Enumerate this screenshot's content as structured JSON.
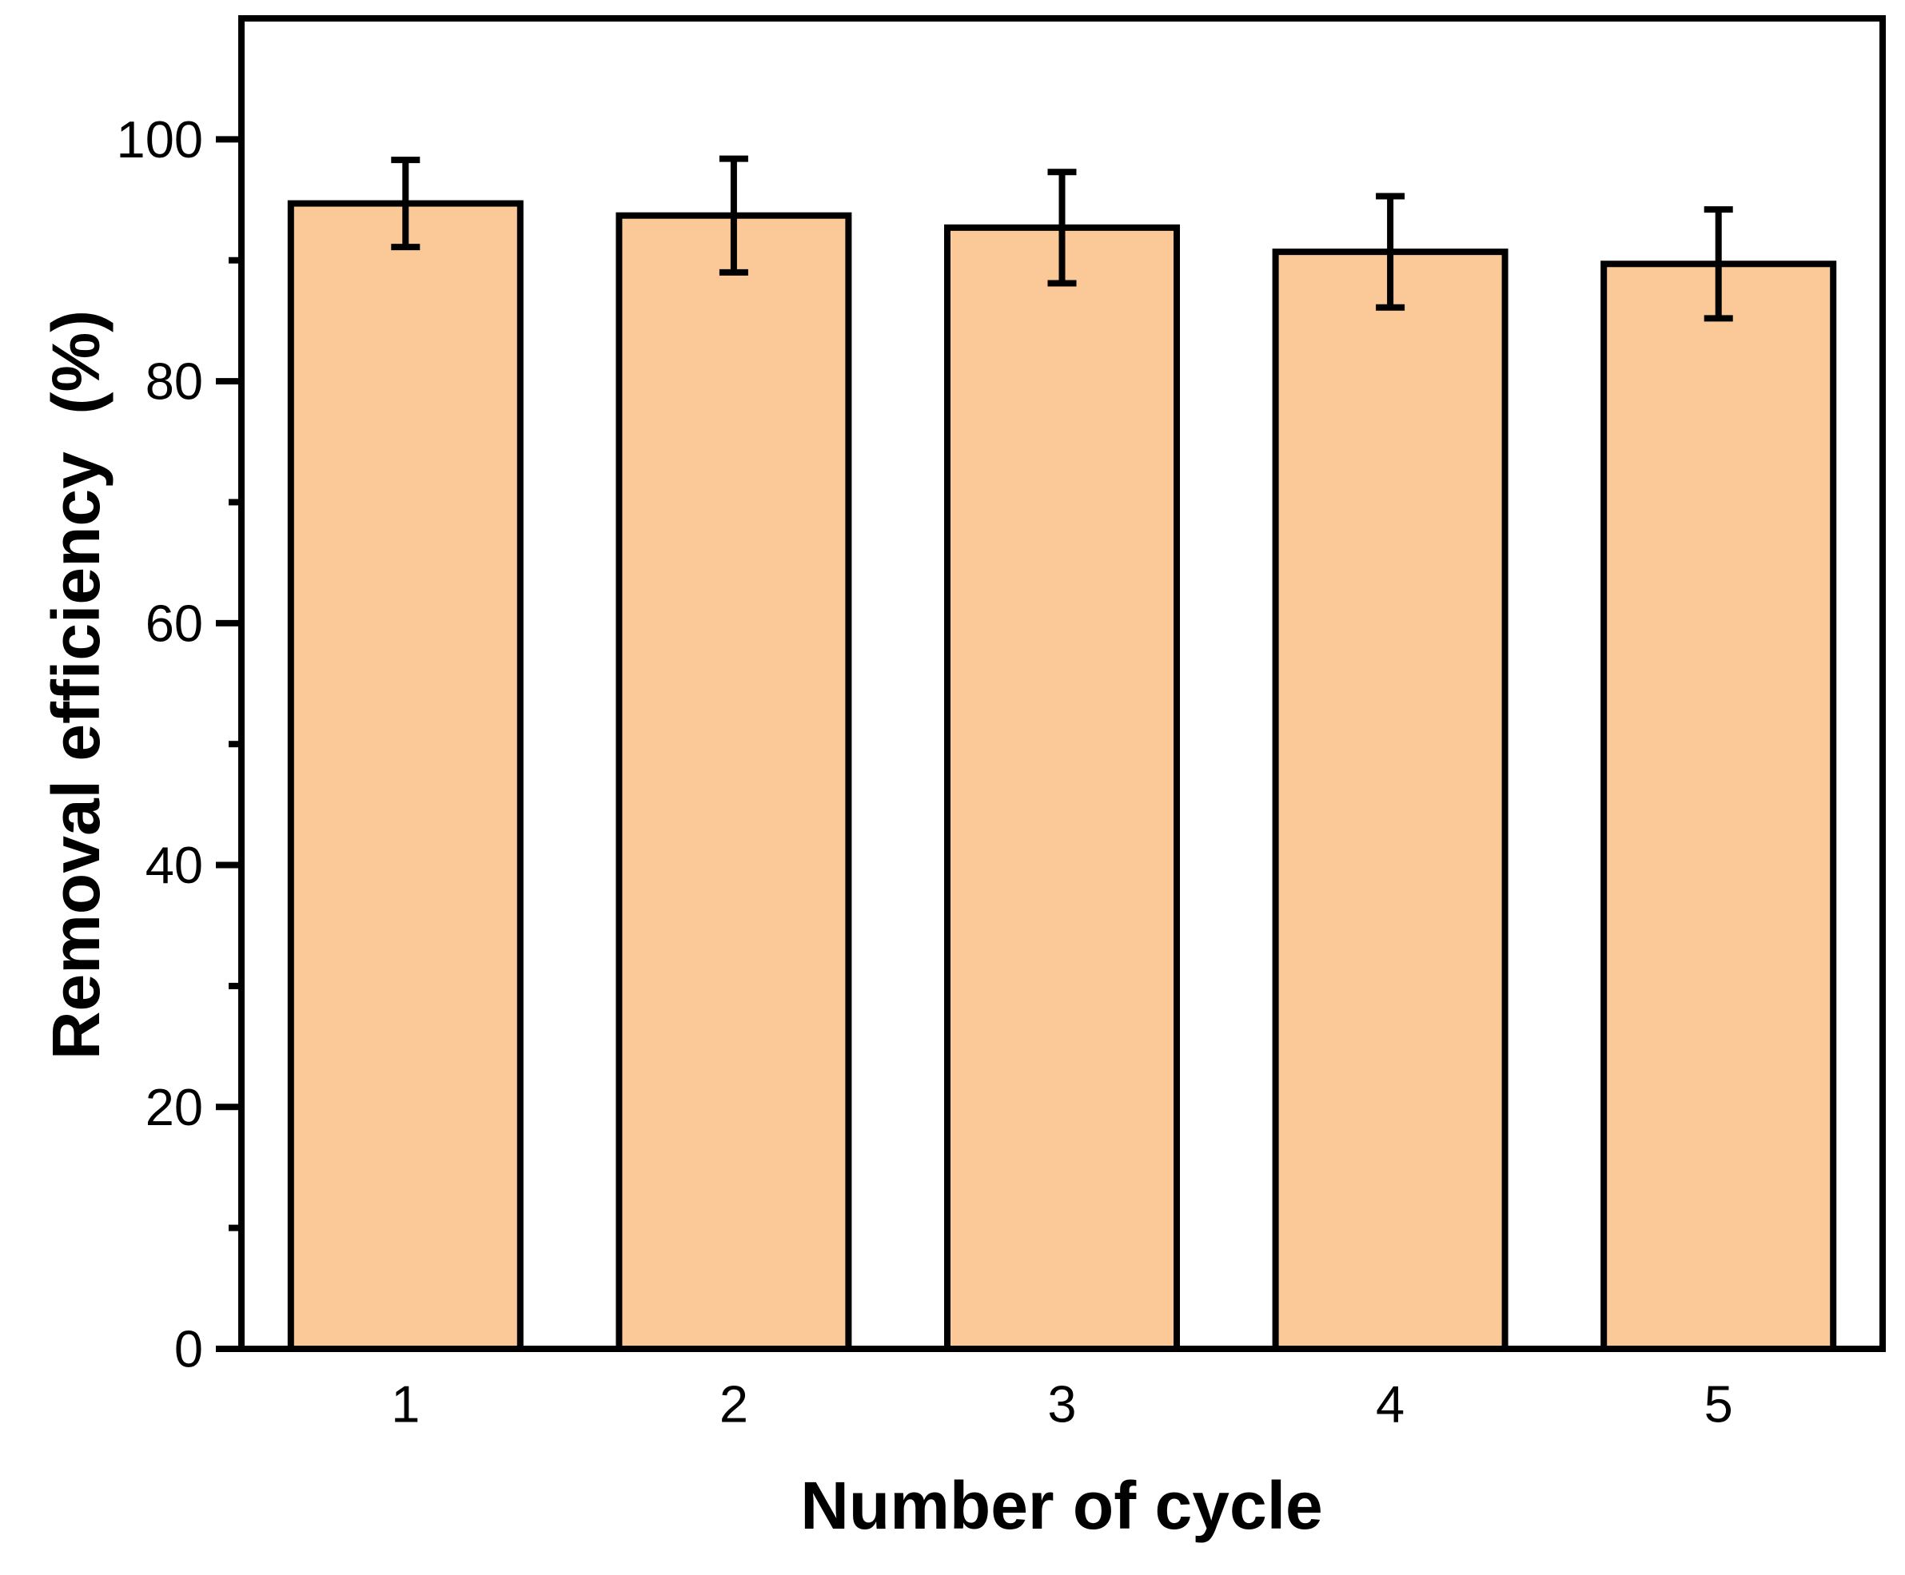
{
  "chart_data": {
    "type": "bar",
    "title": "",
    "xlabel": "Number of cycle",
    "ylabel": "Removal efficiency  (%)",
    "categories": [
      "1",
      "2",
      "3",
      "4",
      "5"
    ],
    "series": [
      {
        "name": "Removal efficiency",
        "values": [
          94.7,
          93.7,
          92.7,
          90.7,
          89.7
        ],
        "errors": [
          3.6,
          4.7,
          4.6,
          4.6,
          4.5
        ]
      }
    ],
    "ylim": [
      0,
      110
    ],
    "yticks_major": [
      0,
      20,
      40,
      60,
      80,
      100
    ],
    "yticks_minor": [
      10,
      30,
      50,
      70,
      90
    ],
    "grid": false,
    "legend": false,
    "colors": {
      "bar_fill": "#FBC998",
      "bar_stroke": "#000000",
      "axis": "#000000",
      "background": "#FFFFFF"
    }
  }
}
